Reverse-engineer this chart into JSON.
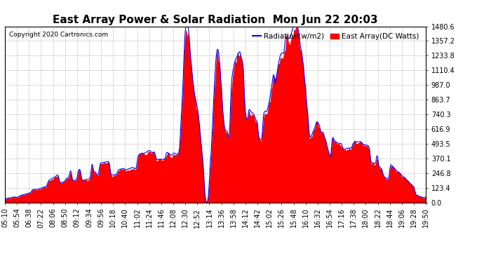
{
  "title": "East Array Power & Solar Radiation  Mon Jun 22 20:03",
  "copyright": "Copyright 2020 Cartronics.com",
  "legend_radiation": "Radiation(w/m2)",
  "legend_east": "East Array(DC Watts)",
  "y_ticks": [
    0.0,
    123.4,
    246.8,
    370.1,
    493.5,
    616.9,
    740.3,
    863.7,
    987.0,
    1110.4,
    1233.8,
    1357.2,
    1480.6
  ],
  "ymax": 1480.6,
  "ymin": 0.0,
  "radiation_color": "#0000FF",
  "east_color": "#FF0000",
  "background_color": "#FFFFFF",
  "grid_color": "#AAAAAA",
  "title_fontsize": 11,
  "tick_fontsize": 7,
  "x_labels": [
    "05:10",
    "05:54",
    "06:38",
    "07:22",
    "08:06",
    "08:50",
    "09:12",
    "09:34",
    "09:56",
    "10:18",
    "10:40",
    "11:02",
    "11:24",
    "11:46",
    "12:08",
    "12:30",
    "12:52",
    "13:14",
    "13:36",
    "13:58",
    "14:12",
    "14:42",
    "15:02",
    "15:26",
    "15:48",
    "16:10",
    "16:32",
    "16:54",
    "17:16",
    "17:38",
    "18:00",
    "18:22",
    "18:44",
    "19:06",
    "19:28",
    "19:50"
  ]
}
